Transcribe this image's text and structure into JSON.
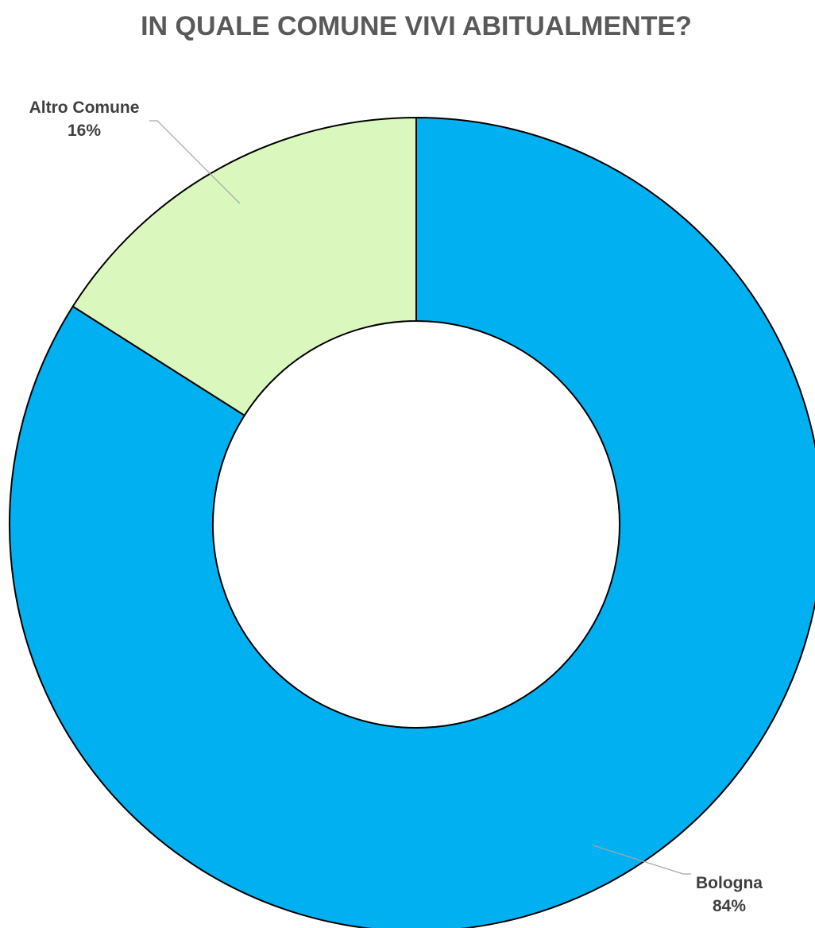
{
  "chart_data": {
    "type": "pie",
    "variant": "donut",
    "title": "IN QUALE COMUNE VIVI ABITUALMENTE?",
    "categories": [
      "Bologna",
      "Altro Comune"
    ],
    "values": [
      84,
      16
    ],
    "unit": "%",
    "colors": [
      "#00B0F0",
      "#DAF7BE"
    ],
    "data_labels": [
      {
        "category": "Bologna",
        "value_text": "84%"
      },
      {
        "category": "Altro Comune",
        "value_text": "16%"
      }
    ],
    "legend": "none",
    "start_angle": "top (12 o'clock)",
    "direction": "clockwise"
  }
}
